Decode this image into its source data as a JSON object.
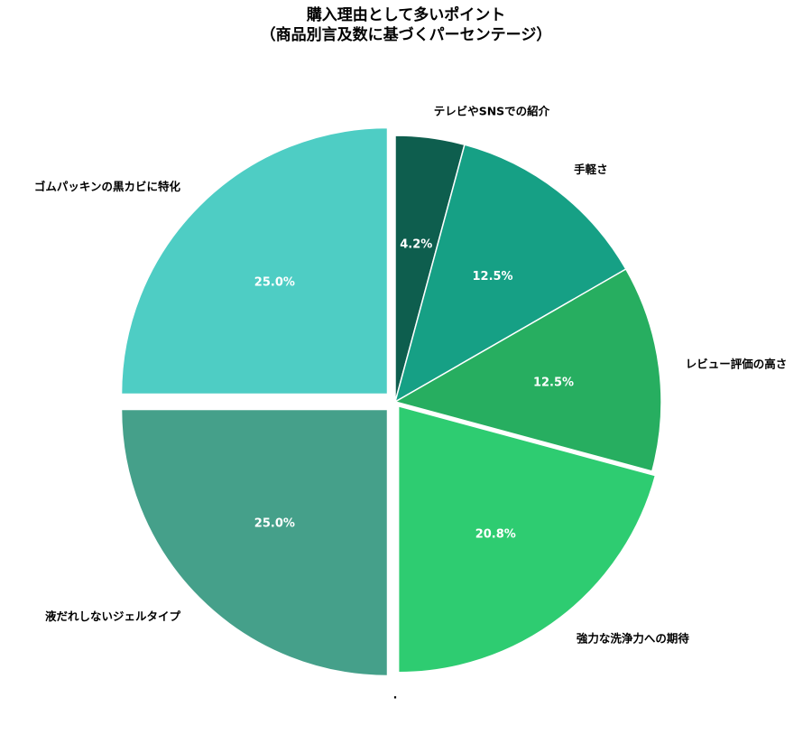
{
  "title_line1": "購入理由として多いポイント",
  "title_line2": "（商品別言及数に基づくパーセンテージ）",
  "chart_data": {
    "type": "pie",
    "title": "購入理由として多いポイント（商品別言及数に基づくパーセンテージ）",
    "start_angle": 90,
    "direction": "clockwise",
    "slices": [
      {
        "label": "テレビやSNSでの紹介",
        "value": 4.2,
        "pct_label": "4.2%",
        "color": "#0e5e4e",
        "explode": 0
      },
      {
        "label": "手軽さ",
        "value": 12.5,
        "pct_label": "12.5%",
        "color": "#16a085",
        "explode": 0
      },
      {
        "label": "レビュー評価の高さ",
        "value": 12.5,
        "pct_label": "12.5%",
        "color": "#27ae60",
        "explode": 0
      },
      {
        "label": "強力な洗浄力への期待",
        "value": 20.8,
        "pct_label": "20.8%",
        "color": "#2ecc71",
        "explode": 6
      },
      {
        "label": ".",
        "value": 0.0,
        "pct_label": "",
        "color": "#000000",
        "explode": 0
      },
      {
        "label": "液だれしないジェルタイプ",
        "value": 25.0,
        "pct_label": "25.0%",
        "color": "#45a08a",
        "explode": 12
      },
      {
        "label": "ゴムパッキンの黒カビに特化",
        "value": 25.0,
        "pct_label": "25.0%",
        "color": "#4ecdc4",
        "explode": 12
      }
    ]
  }
}
